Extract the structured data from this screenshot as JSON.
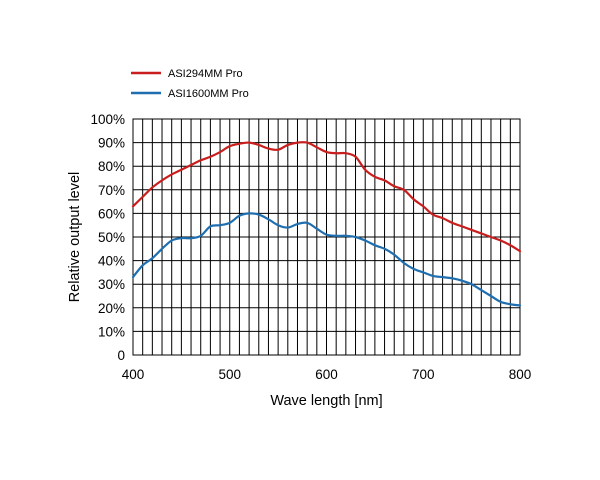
{
  "chart_data": {
    "type": "line",
    "xlabel": "Wave length [nm]",
    "ylabel": "Relative output level",
    "xlim": [
      400,
      800
    ],
    "ylim": [
      0,
      100
    ],
    "x_ticks": [
      400,
      500,
      600,
      700,
      800
    ],
    "y_ticks": [
      0,
      10,
      20,
      30,
      40,
      50,
      60,
      70,
      80,
      90,
      100
    ],
    "y_tick_labels": [
      "0",
      "10%",
      "20%",
      "30%",
      "40%",
      "50%",
      "60%",
      "70%",
      "80%",
      "90%",
      "100%"
    ],
    "grid": true,
    "x_grid_step": 10,
    "legend_position": "top-left",
    "series": [
      {
        "name": "ASI294MM Pro",
        "color": "#c81e1e",
        "x": [
          400,
          410,
          420,
          430,
          440,
          450,
          460,
          470,
          480,
          490,
          500,
          510,
          520,
          530,
          540,
          550,
          560,
          570,
          580,
          590,
          600,
          610,
          620,
          630,
          640,
          650,
          660,
          670,
          680,
          690,
          700,
          710,
          720,
          730,
          740,
          750,
          760,
          770,
          780,
          790,
          800
        ],
        "y": [
          63,
          67,
          71,
          74,
          76.5,
          78.5,
          80.5,
          82.5,
          84,
          86,
          88.5,
          89.5,
          90,
          89,
          87.5,
          87,
          89,
          90,
          90,
          88,
          86,
          85.5,
          85.5,
          84,
          78.5,
          75.5,
          74,
          71.5,
          70,
          66,
          63,
          59.5,
          58,
          56,
          54.5,
          53,
          51.5,
          50,
          48.5,
          46.5,
          44
        ]
      },
      {
        "name": "ASI1600MM Pro",
        "color": "#1f6fb0",
        "x": [
          400,
          410,
          420,
          430,
          440,
          450,
          460,
          470,
          480,
          490,
          500,
          510,
          520,
          530,
          540,
          550,
          560,
          570,
          580,
          590,
          600,
          610,
          620,
          630,
          640,
          650,
          660,
          670,
          680,
          690,
          700,
          710,
          720,
          730,
          740,
          750,
          760,
          770,
          780,
          790,
          800
        ],
        "y": [
          33,
          38,
          41,
          45,
          48.5,
          49.5,
          49.5,
          50.5,
          54.5,
          55,
          56,
          59,
          60,
          59.5,
          57.5,
          55,
          54,
          55.5,
          56,
          53.5,
          51,
          50.5,
          50.5,
          50,
          48.5,
          46.5,
          45,
          42.5,
          39,
          36.5,
          35,
          33.5,
          33,
          32.5,
          31.5,
          30,
          27.5,
          25,
          22.5,
          21.5,
          21
        ]
      }
    ]
  }
}
